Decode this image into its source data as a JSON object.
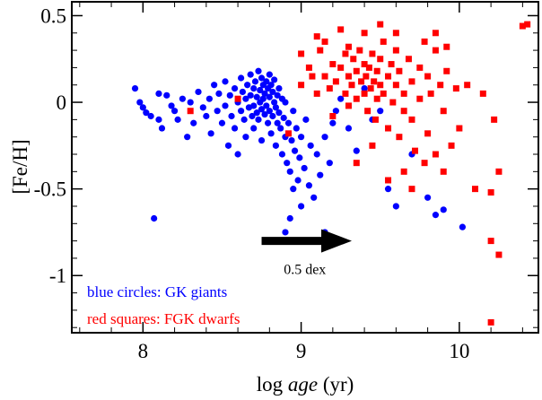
{
  "chart_data": {
    "type": "scatter",
    "xlabel_prefix": "log ",
    "xlabel_italic": "age",
    "xlabel_suffix": " (yr)",
    "ylabel": "[Fe/H]",
    "xlim": [
      7.55,
      10.5
    ],
    "ylim": [
      -1.33,
      0.58
    ],
    "x_ticks": [
      {
        "value": 8,
        "label": "8"
      },
      {
        "value": 9,
        "label": "9"
      },
      {
        "value": 10,
        "label": "10"
      }
    ],
    "y_ticks": [
      {
        "value": 0.5,
        "label": "0.5"
      },
      {
        "value": 0,
        "label": "0"
      },
      {
        "value": -0.5,
        "label": "-0.5"
      },
      {
        "value": -1,
        "label": "-1"
      }
    ],
    "annotation": {
      "label": "0.5 dex",
      "arrow_from": [
        8.75,
        -0.8
      ],
      "arrow_to": [
        9.32,
        -0.8
      ]
    },
    "series": [
      {
        "name": "blue circles: GK giants",
        "color": "#0000ff",
        "marker": "circle",
        "points": [
          [
            7.95,
            0.08
          ],
          [
            7.98,
            0.0
          ],
          [
            8.0,
            -0.03
          ],
          [
            8.02,
            -0.06
          ],
          [
            8.05,
            -0.08
          ],
          [
            8.07,
            -0.67
          ],
          [
            8.1,
            0.05
          ],
          [
            8.1,
            -0.1
          ],
          [
            8.12,
            -0.15
          ],
          [
            8.15,
            0.04
          ],
          [
            8.18,
            -0.02
          ],
          [
            8.2,
            -0.05
          ],
          [
            8.22,
            -0.1
          ],
          [
            8.25,
            0.02
          ],
          [
            8.28,
            -0.2
          ],
          [
            8.3,
            0.0
          ],
          [
            8.32,
            -0.12
          ],
          [
            8.35,
            0.06
          ],
          [
            8.38,
            -0.03
          ],
          [
            8.4,
            -0.08
          ],
          [
            8.42,
            0.02
          ],
          [
            8.43,
            -0.18
          ],
          [
            8.45,
            0.1
          ],
          [
            8.47,
            -0.05
          ],
          [
            8.48,
            0.05
          ],
          [
            8.5,
            -0.12
          ],
          [
            8.52,
            0.12
          ],
          [
            8.52,
            -0.02
          ],
          [
            8.54,
            -0.25
          ],
          [
            8.55,
            0.04
          ],
          [
            8.56,
            -0.08
          ],
          [
            8.58,
            0.08
          ],
          [
            8.58,
            -0.15
          ],
          [
            8.6,
            0.0
          ],
          [
            8.6,
            -0.3
          ],
          [
            8.62,
            0.14
          ],
          [
            8.62,
            -0.05
          ],
          [
            8.63,
            0.06
          ],
          [
            8.64,
            -0.1
          ],
          [
            8.65,
            0.02
          ],
          [
            8.65,
            -0.2
          ],
          [
            8.66,
            0.1
          ],
          [
            8.67,
            -0.03
          ],
          [
            8.68,
            0.16
          ],
          [
            8.68,
            0.04
          ],
          [
            8.69,
            -0.08
          ],
          [
            8.7,
            0.08
          ],
          [
            8.7,
            -0.02
          ],
          [
            8.7,
            -0.15
          ],
          [
            8.71,
            0.12
          ],
          [
            8.72,
            0.03
          ],
          [
            8.72,
            -0.06
          ],
          [
            8.73,
            0.18
          ],
          [
            8.73,
            -0.1
          ],
          [
            8.74,
            0.07
          ],
          [
            8.74,
            0.0
          ],
          [
            8.75,
            0.14
          ],
          [
            8.75,
            -0.04
          ],
          [
            8.75,
            -0.22
          ],
          [
            8.76,
            0.1
          ],
          [
            8.76,
            0.02
          ],
          [
            8.77,
            -0.07
          ],
          [
            8.77,
            0.05
          ],
          [
            8.78,
            0.12
          ],
          [
            8.78,
            -0.02
          ],
          [
            8.79,
            0.08
          ],
          [
            8.79,
            -0.12
          ],
          [
            8.8,
            0.16
          ],
          [
            8.8,
            0.03
          ],
          [
            8.8,
            -0.05
          ],
          [
            8.81,
            0.1
          ],
          [
            8.81,
            -0.18
          ],
          [
            8.82,
            0.06
          ],
          [
            8.82,
            -0.08
          ],
          [
            8.83,
            0.0
          ],
          [
            8.83,
            0.13
          ],
          [
            8.84,
            -0.03
          ],
          [
            8.84,
            -0.25
          ],
          [
            8.85,
            0.04
          ],
          [
            8.85,
            -0.12
          ],
          [
            8.86,
            0.08
          ],
          [
            8.86,
            -0.06
          ],
          [
            8.87,
            -0.15
          ],
          [
            8.88,
            0.02
          ],
          [
            8.88,
            -0.3
          ],
          [
            8.89,
            -0.09
          ],
          [
            8.9,
            -0.2
          ],
          [
            8.9,
            0.0
          ],
          [
            8.91,
            -0.35
          ],
          [
            8.92,
            -0.12
          ],
          [
            8.93,
            -0.4
          ],
          [
            8.94,
            -0.22
          ],
          [
            8.95,
            -0.5
          ],
          [
            8.95,
            -0.05
          ],
          [
            8.96,
            -0.28
          ],
          [
            8.97,
            -0.15
          ],
          [
            8.98,
            -0.45
          ],
          [
            8.99,
            -0.32
          ],
          [
            9.0,
            -0.2
          ],
          [
            9.0,
            -0.6
          ],
          [
            9.02,
            -0.38
          ],
          [
            9.03,
            -0.1
          ],
          [
            9.05,
            -0.48
          ],
          [
            9.06,
            -0.25
          ],
          [
            9.08,
            -0.55
          ],
          [
            9.1,
            -0.3
          ],
          [
            9.12,
            -0.42
          ],
          [
            9.15,
            -0.2
          ],
          [
            9.18,
            -0.35
          ],
          [
            9.2,
            -0.12
          ],
          [
            9.22,
            -0.05
          ],
          [
            9.25,
            0.02
          ],
          [
            9.3,
            -0.15
          ],
          [
            9.35,
            -0.28
          ],
          [
            9.4,
            0.08
          ],
          [
            9.45,
            -0.1
          ],
          [
            9.5,
            -0.05
          ],
          [
            9.55,
            -0.5
          ],
          [
            9.6,
            -0.6
          ],
          [
            9.7,
            -0.3
          ],
          [
            9.8,
            -0.55
          ],
          [
            9.85,
            -0.65
          ],
          [
            9.9,
            -0.62
          ],
          [
            10.02,
            -0.72
          ],
          [
            8.9,
            -0.75
          ],
          [
            8.93,
            -0.67
          ],
          [
            9.15,
            -0.75
          ]
        ]
      },
      {
        "name": "red squares: FGK dwarfs",
        "color": "#ff0000",
        "marker": "square",
        "points": [
          [
            8.3,
            -0.05
          ],
          [
            8.6,
            0.02
          ],
          [
            8.92,
            -0.18
          ],
          [
            9.0,
            0.1
          ],
          [
            9.0,
            0.28
          ],
          [
            9.05,
            0.2
          ],
          [
            9.07,
            0.15
          ],
          [
            9.1,
            0.05
          ],
          [
            9.12,
            0.3
          ],
          [
            9.15,
            0.15
          ],
          [
            9.18,
            0.08
          ],
          [
            9.2,
            0.22
          ],
          [
            9.2,
            -0.08
          ],
          [
            9.22,
            0.12
          ],
          [
            9.25,
            0.2
          ],
          [
            9.25,
            0.42
          ],
          [
            9.28,
            0.05
          ],
          [
            9.28,
            0.28
          ],
          [
            9.3,
            0.15
          ],
          [
            9.3,
            -0.02
          ],
          [
            9.32,
            0.1
          ],
          [
            9.33,
            0.25
          ],
          [
            9.35,
            0.18
          ],
          [
            9.35,
            0.02
          ],
          [
            9.37,
            0.3
          ],
          [
            9.38,
            0.12
          ],
          [
            9.4,
            0.22
          ],
          [
            9.4,
            0.05
          ],
          [
            9.41,
            0.15
          ],
          [
            9.42,
            -0.05
          ],
          [
            9.43,
            0.2
          ],
          [
            9.44,
            0.08
          ],
          [
            9.45,
            0.28
          ],
          [
            9.46,
            0.12
          ],
          [
            9.47,
            -0.1
          ],
          [
            9.48,
            0.18
          ],
          [
            9.48,
            0.02
          ],
          [
            9.5,
            0.25
          ],
          [
            9.5,
            0.1
          ],
          [
            9.52,
            0.35
          ],
          [
            9.52,
            0.05
          ],
          [
            9.55,
            0.15
          ],
          [
            9.55,
            -0.15
          ],
          [
            9.57,
            0.22
          ],
          [
            9.58,
            0.0
          ],
          [
            9.6,
            0.3
          ],
          [
            9.6,
            0.1
          ],
          [
            9.62,
            -0.2
          ],
          [
            9.62,
            0.18
          ],
          [
            9.65,
            0.05
          ],
          [
            9.65,
            -0.05
          ],
          [
            9.68,
            0.25
          ],
          [
            9.7,
            0.12
          ],
          [
            9.7,
            -0.1
          ],
          [
            9.72,
            -0.28
          ],
          [
            9.75,
            0.2
          ],
          [
            9.75,
            0.02
          ],
          [
            9.78,
            -0.35
          ],
          [
            9.8,
            0.15
          ],
          [
            9.8,
            -0.18
          ],
          [
            9.82,
            0.05
          ],
          [
            9.85,
            0.3
          ],
          [
            9.85,
            -0.3
          ],
          [
            9.88,
            0.1
          ],
          [
            9.9,
            -0.05
          ],
          [
            9.9,
            -0.4
          ],
          [
            9.92,
            0.18
          ],
          [
            9.95,
            -0.25
          ],
          [
            9.98,
            0.08
          ],
          [
            10.0,
            -0.15
          ],
          [
            10.05,
            0.1
          ],
          [
            10.1,
            -0.5
          ],
          [
            10.15,
            0.05
          ],
          [
            10.2,
            -0.52
          ],
          [
            10.22,
            -0.1
          ],
          [
            10.25,
            -0.4
          ],
          [
            10.2,
            -0.8
          ],
          [
            10.25,
            -0.88
          ],
          [
            10.4,
            0.44
          ],
          [
            10.43,
            0.45
          ],
          [
            10.2,
            -1.27
          ],
          [
            9.35,
            -0.35
          ],
          [
            9.45,
            -0.25
          ],
          [
            9.55,
            -0.45
          ],
          [
            9.65,
            -0.4
          ],
          [
            9.7,
            -0.5
          ],
          [
            9.78,
            0.35
          ],
          [
            9.85,
            0.4
          ],
          [
            9.92,
            0.32
          ],
          [
            9.6,
            0.4
          ],
          [
            9.5,
            0.45
          ],
          [
            9.4,
            0.4
          ],
          [
            9.3,
            0.32
          ],
          [
            9.15,
            0.35
          ],
          [
            9.1,
            0.38
          ]
        ]
      }
    ]
  }
}
